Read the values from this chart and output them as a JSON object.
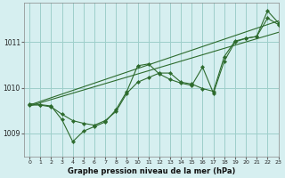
{
  "title": "Graphe pression niveau de la mer (hPa)",
  "bg_color": "#d6eff0",
  "grid_color": "#9ecfca",
  "line_color": "#2d6b2d",
  "xlim": [
    -0.5,
    23
  ],
  "ylim": [
    1008.5,
    1011.85
  ],
  "yticks": [
    1009,
    1010,
    1011
  ],
  "xticks": [
    0,
    1,
    2,
    3,
    4,
    5,
    6,
    7,
    8,
    9,
    10,
    11,
    12,
    13,
    14,
    15,
    16,
    17,
    18,
    19,
    20,
    21,
    22,
    23
  ],
  "hours": [
    0,
    1,
    2,
    3,
    4,
    5,
    6,
    7,
    8,
    9,
    10,
    11,
    12,
    13,
    14,
    15,
    16,
    17,
    18,
    19,
    20,
    21,
    22,
    23
  ],
  "line_straight1": [
    1009.62,
    1009.7,
    1009.78,
    1009.86,
    1009.94,
    1010.02,
    1010.1,
    1010.18,
    1010.26,
    1010.34,
    1010.42,
    1010.5,
    1010.58,
    1010.66,
    1010.74,
    1010.82,
    1010.9,
    1010.98,
    1011.06,
    1011.14,
    1011.22,
    1011.3,
    1011.38,
    1011.46
  ],
  "line_straight2": [
    1009.6,
    1009.67,
    1009.74,
    1009.81,
    1009.88,
    1009.95,
    1010.02,
    1010.09,
    1010.16,
    1010.23,
    1010.3,
    1010.37,
    1010.44,
    1010.51,
    1010.58,
    1010.65,
    1010.72,
    1010.79,
    1010.86,
    1010.93,
    1011.0,
    1011.07,
    1011.14,
    1011.21
  ],
  "line_wavy1": [
    1009.65,
    1009.63,
    1009.6,
    1009.3,
    1008.82,
    1009.05,
    1009.15,
    1009.25,
    1009.52,
    1009.92,
    1010.48,
    1010.52,
    1010.3,
    1010.18,
    1010.1,
    1010.05,
    1010.45,
    1009.88,
    1010.58,
    1011.0,
    1011.08,
    1011.12,
    1011.68,
    1011.42
  ],
  "line_wavy2": [
    1009.62,
    1009.62,
    1009.58,
    1009.42,
    1009.28,
    1009.22,
    1009.18,
    1009.28,
    1009.48,
    1009.88,
    1010.12,
    1010.22,
    1010.32,
    1010.32,
    1010.12,
    1010.08,
    1009.98,
    1009.92,
    1010.68,
    1011.02,
    1011.08,
    1011.12,
    1011.52,
    1011.38
  ]
}
